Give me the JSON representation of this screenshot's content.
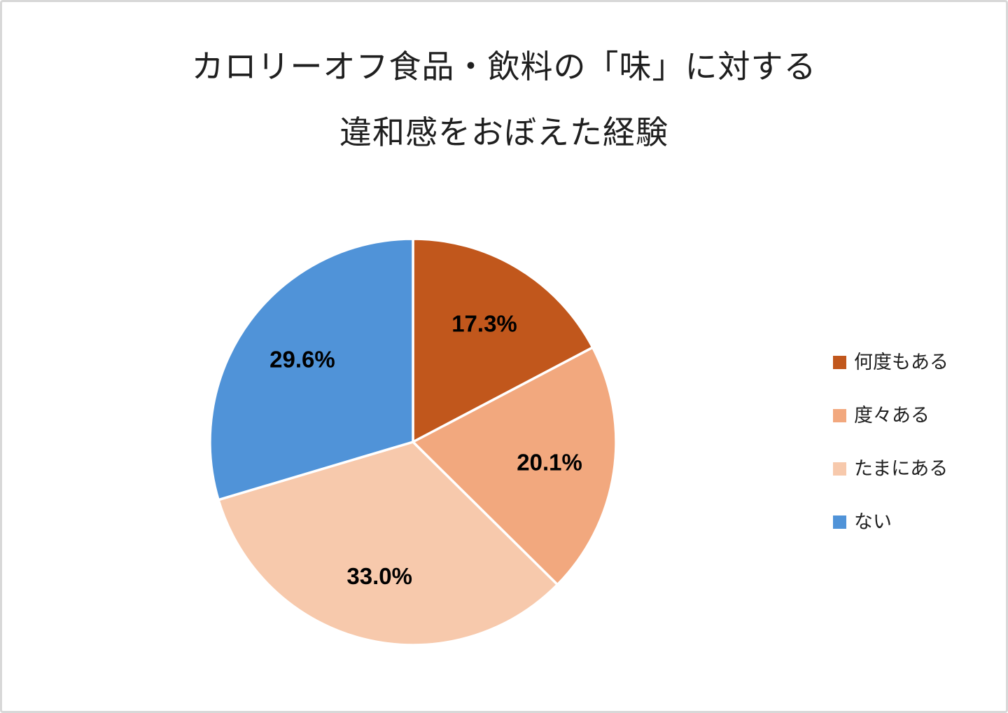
{
  "page": {
    "background": "#FFFFFF",
    "border_color": "#D8D8D8"
  },
  "title": {
    "lines": [
      "カロリーオフ食品・飲料の「味」に対する",
      "違和感をおぼえた経験"
    ],
    "color": "#1F1F1F"
  },
  "chart_data": {
    "type": "pie",
    "title": "カロリーオフ食品・飲料の「味」に対する違和感をおぼえた経験",
    "categories": [
      "何度もある",
      "度々ある",
      "たまにある",
      "ない"
    ],
    "values": [
      17.3,
      20.1,
      33.0,
      29.6
    ],
    "labels": [
      "17.3%",
      "20.1%",
      "33.0%",
      "29.6%"
    ],
    "colors": [
      "#C1571C",
      "#F2A87E",
      "#F7C9AC",
      "#5093D8"
    ],
    "start_angle_deg": 0,
    "direction": "clockwise",
    "slice_border_color": "#FFFFFF",
    "label_color": "#000000",
    "legend_position": "right",
    "legend": [
      {
        "label": "何度もある",
        "color": "#C1571C"
      },
      {
        "label": "度々ある",
        "color": "#F2A87E"
      },
      {
        "label": "たまにある",
        "color": "#F7C9AC"
      },
      {
        "label": "ない",
        "color": "#5093D8"
      }
    ]
  }
}
